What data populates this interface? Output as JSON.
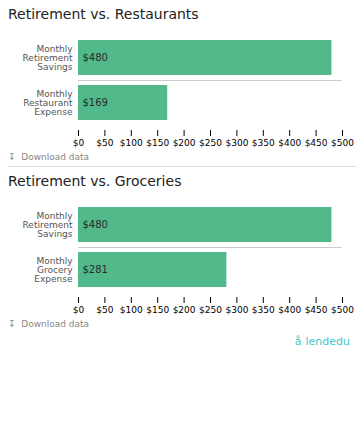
{
  "chart_data": [
    {
      "type": "bar",
      "orientation": "horizontal",
      "title": "Retirement vs. Restaurants",
      "categories": [
        "Monthly Retirement Savings",
        "Monthly Restaurant Expense"
      ],
      "values": [
        480,
        169
      ],
      "value_labels": [
        "$480",
        "$169"
      ],
      "data_labels": true,
      "color": "#52b98a",
      "xlim": [
        0,
        500
      ],
      "xticks": [
        {
          "value": 0,
          "label": "$0"
        },
        {
          "value": 50,
          "label": "$50"
        },
        {
          "value": 100,
          "label": "$100"
        },
        {
          "value": 150,
          "label": "$150"
        },
        {
          "value": 200,
          "label": "$200"
        },
        {
          "value": 250,
          "label": "$250"
        },
        {
          "value": 300,
          "label": "$300"
        },
        {
          "value": 350,
          "label": "$350"
        },
        {
          "value": 400,
          "label": "$400"
        },
        {
          "value": 450,
          "label": "$450"
        },
        {
          "value": 500,
          "label": "$500"
        }
      ],
      "annotations": [
        "↧  Download data"
      ]
    },
    {
      "type": "bar",
      "orientation": "horizontal",
      "title": "Retirement vs. Groceries",
      "categories": [
        "Monthly Retirement Savings",
        "Monthly Grocery Expense"
      ],
      "values": [
        480,
        281
      ],
      "value_labels": [
        "$480",
        "$281"
      ],
      "data_labels": true,
      "color": "#52b98a",
      "xlim": [
        0,
        500
      ],
      "xticks": [
        {
          "value": 0,
          "label": "$0"
        },
        {
          "value": 50,
          "label": "$50"
        },
        {
          "value": 100,
          "label": "$100"
        },
        {
          "value": 150,
          "label": "$150"
        },
        {
          "value": 200,
          "label": "$200"
        },
        {
          "value": 250,
          "label": "$250"
        },
        {
          "value": 300,
          "label": "$300"
        },
        {
          "value": 350,
          "label": "$350"
        },
        {
          "value": 400,
          "label": "$400"
        },
        {
          "value": 450,
          "label": "$450"
        },
        {
          "value": 500,
          "label": "$500"
        }
      ],
      "annotations": [
        "↧  Download data",
        "å",
        "lendedu"
      ]
    }
  ]
}
